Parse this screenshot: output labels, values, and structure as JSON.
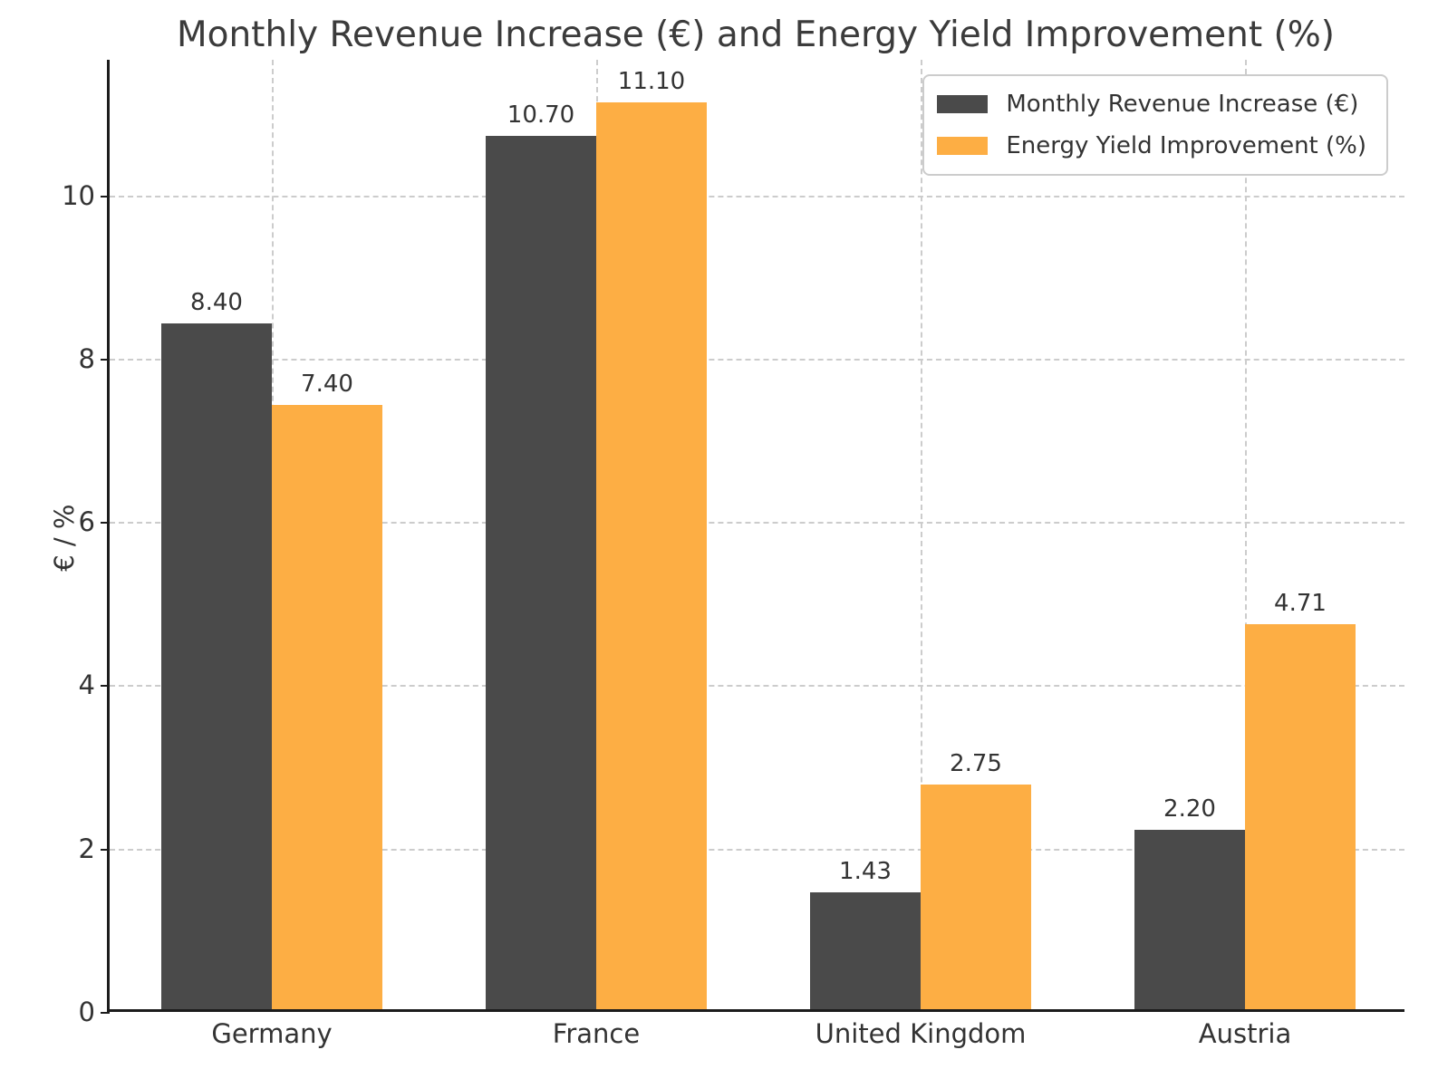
{
  "figure": {
    "title": "Monthly Revenue Increase (€) and Energy Yield Improvement (%)"
  },
  "chart_data": {
    "type": "bar",
    "title": "Monthly Revenue Increase (€) and Energy Yield Improvement (%)",
    "xlabel": "",
    "ylabel": "€ / %",
    "categories": [
      "Germany",
      "France",
      "United Kingdom",
      "Austria"
    ],
    "series": [
      {
        "name": "Monthly Revenue Increase (€)",
        "color": "#4a4a4a",
        "values": [
          8.4,
          10.7,
          1.43,
          2.2
        ],
        "labels": [
          "8.40",
          "10.70",
          "1.43",
          "2.20"
        ]
      },
      {
        "name": "Energy Yield Improvement (%)",
        "color": "#fdae44",
        "values": [
          7.4,
          11.1,
          2.75,
          4.71
        ],
        "labels": [
          "7.40",
          "11.10",
          "2.75",
          "4.71"
        ]
      }
    ],
    "yticks": [
      0,
      2,
      4,
      6,
      8,
      10
    ],
    "ylim": [
      0,
      11.66
    ],
    "grid": true,
    "grid_style": "dashed",
    "legend_position": "upper right",
    "bar_value_labels": true
  },
  "colors": {
    "grid": "#cccccc",
    "spine": "#1c1c1c",
    "text": "#333333",
    "background": "#ffffff"
  }
}
